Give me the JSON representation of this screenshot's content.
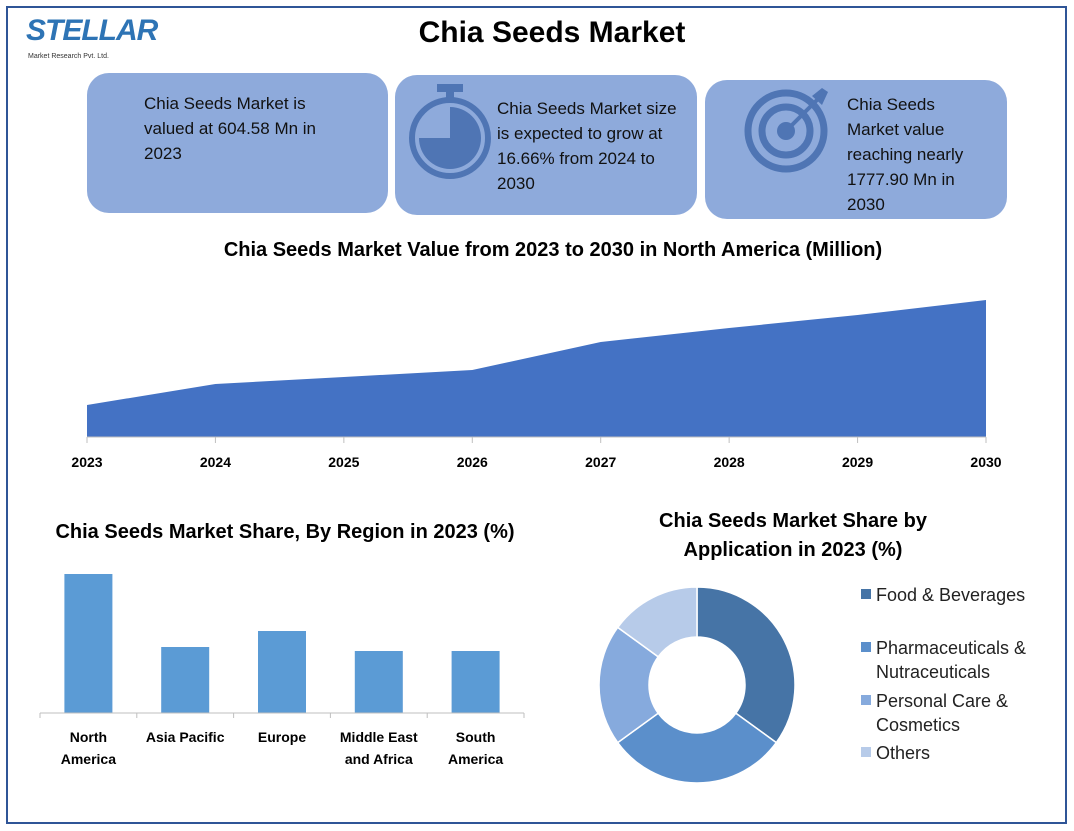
{
  "header": {
    "title": "Chia Seeds Market",
    "logo": "STELLAR",
    "logo_sub": "Market Research Pvt. Ltd."
  },
  "cards": [
    {
      "text": "Chia Seeds Market is valued at 604.58 Mn in 2023"
    },
    {
      "text": "Chia Seeds Market size is expected to grow at 16.66% from 2024 to 2030"
    },
    {
      "text": "Chia Seeds Market value reaching nearly 1777.90 Mn in 2030"
    }
  ],
  "chart_data": [
    {
      "type": "area",
      "title": "Chia Seeds Market Value from 2023 to 2030 in North America (Million)",
      "categories": [
        "2023",
        "2024",
        "2025",
        "2026",
        "2027",
        "2028",
        "2029",
        "2030"
      ],
      "values": [
        32,
        53,
        60,
        67,
        95,
        109,
        122,
        137
      ],
      "color": "#4472c4",
      "ylim": [
        0,
        160
      ]
    },
    {
      "type": "bar",
      "title": "Chia Seeds Market Share, By Region in 2023 (%)",
      "categories": [
        "North America",
        "Asia Pacific",
        "Europe",
        "Middle East and Africa",
        "South America"
      ],
      "values": [
        139,
        66,
        82,
        62,
        62
      ],
      "color": "#5b9bd5",
      "ylim": [
        0,
        150
      ]
    },
    {
      "type": "pie",
      "title": "Chia Seeds Market Share by Application in 2023 (%)",
      "categories": [
        "Food & Beverages",
        "Pharmaceuticals & Nutraceuticals",
        "Personal Care & Cosmetics",
        "Others"
      ],
      "values": [
        35,
        30,
        20,
        15
      ],
      "colors": [
        "#4674a6",
        "#5b8fcb",
        "#86aadd",
        "#b7cbe9"
      ]
    }
  ]
}
